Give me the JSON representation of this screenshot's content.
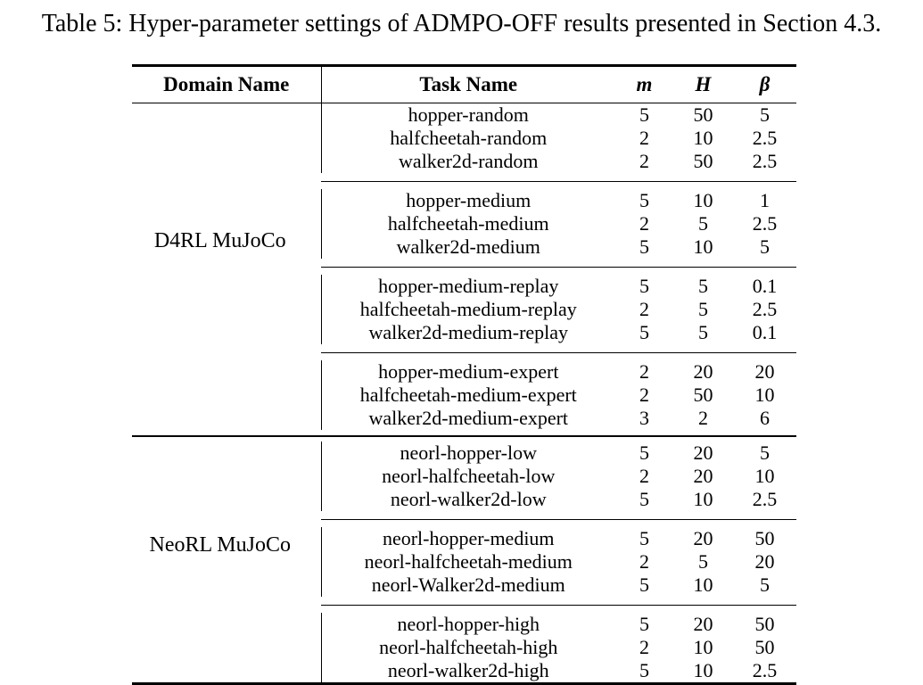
{
  "title": "Table 5: Hyper-parameter settings of ADMPO-OFF results presented in Section 4.3.",
  "table": {
    "headers": {
      "domain": "Domain Name",
      "task": "Task Name",
      "m": "m",
      "H": "H",
      "beta": "β"
    },
    "sections": [
      {
        "domain": "D4RL MuJoCo",
        "blocks": [
          {
            "rows": [
              {
                "task": "hopper-random",
                "m": "5",
                "H": "50",
                "beta": "5"
              },
              {
                "task": "halfcheetah-random",
                "m": "2",
                "H": "10",
                "beta": "2.5"
              },
              {
                "task": "walker2d-random",
                "m": "2",
                "H": "50",
                "beta": "2.5"
              }
            ]
          },
          {
            "rows": [
              {
                "task": "hopper-medium",
                "m": "5",
                "H": "10",
                "beta": "1"
              },
              {
                "task": "halfcheetah-medium",
                "m": "2",
                "H": "5",
                "beta": "2.5"
              },
              {
                "task": "walker2d-medium",
                "m": "5",
                "H": "10",
                "beta": "5"
              }
            ]
          },
          {
            "rows": [
              {
                "task": "hopper-medium-replay",
                "m": "5",
                "H": "5",
                "beta": "0.1"
              },
              {
                "task": "halfcheetah-medium-replay",
                "m": "2",
                "H": "5",
                "beta": "2.5"
              },
              {
                "task": "walker2d-medium-replay",
                "m": "5",
                "H": "5",
                "beta": "0.1"
              }
            ]
          },
          {
            "rows": [
              {
                "task": "hopper-medium-expert",
                "m": "2",
                "H": "20",
                "beta": "20"
              },
              {
                "task": "halfcheetah-medium-expert",
                "m": "2",
                "H": "50",
                "beta": "10"
              },
              {
                "task": "walker2d-medium-expert",
                "m": "3",
                "H": "2",
                "beta": "6"
              }
            ]
          }
        ]
      },
      {
        "domain": "NeoRL MuJoCo",
        "blocks": [
          {
            "rows": [
              {
                "task": "neorl-hopper-low",
                "m": "5",
                "H": "20",
                "beta": "5"
              },
              {
                "task": "neorl-halfcheetah-low",
                "m": "2",
                "H": "20",
                "beta": "10"
              },
              {
                "task": "neorl-walker2d-low",
                "m": "5",
                "H": "10",
                "beta": "2.5"
              }
            ]
          },
          {
            "rows": [
              {
                "task": "neorl-hopper-medium",
                "m": "5",
                "H": "20",
                "beta": "50"
              },
              {
                "task": "neorl-halfcheetah-medium",
                "m": "2",
                "H": "5",
                "beta": "20"
              },
              {
                "task": "neorl-Walker2d-medium",
                "m": "5",
                "H": "10",
                "beta": "5"
              }
            ]
          },
          {
            "rows": [
              {
                "task": "neorl-hopper-high",
                "m": "5",
                "H": "20",
                "beta": "50"
              },
              {
                "task": "neorl-halfcheetah-high",
                "m": "2",
                "H": "10",
                "beta": "50"
              },
              {
                "task": "neorl-walker2d-high",
                "m": "5",
                "H": "10",
                "beta": "2.5"
              }
            ]
          }
        ]
      }
    ]
  },
  "chart_data": {
    "type": "table",
    "title": "Table 5: Hyper-parameter settings of ADMPO-OFF results presented in Section 4.3.",
    "columns": [
      "Domain Name",
      "Task Name",
      "m",
      "H",
      "β"
    ],
    "rows": [
      [
        "D4RL MuJoCo",
        "hopper-random",
        5,
        50,
        5
      ],
      [
        "D4RL MuJoCo",
        "halfcheetah-random",
        2,
        10,
        2.5
      ],
      [
        "D4RL MuJoCo",
        "walker2d-random",
        2,
        50,
        2.5
      ],
      [
        "D4RL MuJoCo",
        "hopper-medium",
        5,
        10,
        1
      ],
      [
        "D4RL MuJoCo",
        "halfcheetah-medium",
        2,
        5,
        2.5
      ],
      [
        "D4RL MuJoCo",
        "walker2d-medium",
        5,
        10,
        5
      ],
      [
        "D4RL MuJoCo",
        "hopper-medium-replay",
        5,
        5,
        0.1
      ],
      [
        "D4RL MuJoCo",
        "halfcheetah-medium-replay",
        2,
        5,
        2.5
      ],
      [
        "D4RL MuJoCo",
        "walker2d-medium-replay",
        5,
        5,
        0.1
      ],
      [
        "D4RL MuJoCo",
        "hopper-medium-expert",
        2,
        20,
        20
      ],
      [
        "D4RL MuJoCo",
        "halfcheetah-medium-expert",
        2,
        50,
        10
      ],
      [
        "D4RL MuJoCo",
        "walker2d-medium-expert",
        3,
        2,
        6
      ],
      [
        "NeoRL MuJoCo",
        "neorl-hopper-low",
        5,
        20,
        5
      ],
      [
        "NeoRL MuJoCo",
        "neorl-halfcheetah-low",
        2,
        20,
        10
      ],
      [
        "NeoRL MuJoCo",
        "neorl-walker2d-low",
        5,
        10,
        2.5
      ],
      [
        "NeoRL MuJoCo",
        "neorl-hopper-medium",
        5,
        20,
        50
      ],
      [
        "NeoRL MuJoCo",
        "neorl-halfcheetah-medium",
        2,
        5,
        20
      ],
      [
        "NeoRL MuJoCo",
        "neorl-Walker2d-medium",
        5,
        10,
        5
      ],
      [
        "NeoRL MuJoCo",
        "neorl-hopper-high",
        5,
        20,
        50
      ],
      [
        "NeoRL MuJoCo",
        "neorl-halfcheetah-high",
        2,
        10,
        50
      ],
      [
        "NeoRL MuJoCo",
        "neorl-walker2d-high",
        5,
        10,
        2.5
      ]
    ]
  }
}
